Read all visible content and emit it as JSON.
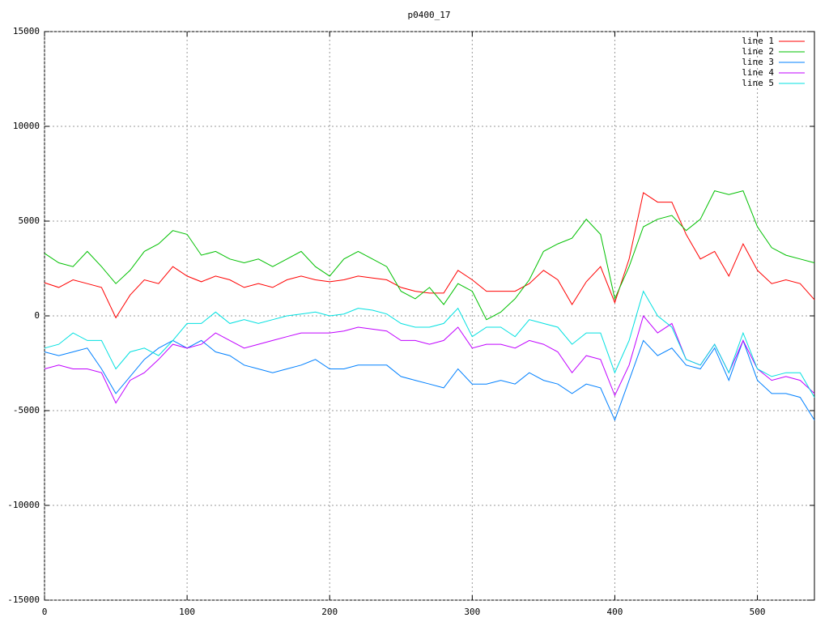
{
  "chart_data": {
    "type": "line",
    "title": "p0400_17",
    "x": [
      0,
      10,
      20,
      30,
      40,
      50,
      60,
      70,
      80,
      90,
      100,
      110,
      120,
      130,
      140,
      150,
      160,
      170,
      180,
      190,
      200,
      210,
      220,
      230,
      240,
      250,
      260,
      270,
      280,
      290,
      300,
      310,
      320,
      330,
      340,
      350,
      360,
      370,
      380,
      390,
      400,
      410,
      420,
      430,
      440,
      450,
      460,
      470,
      480,
      490,
      500,
      510,
      520,
      530,
      540
    ],
    "series": [
      {
        "name": "line 1",
        "color": "#ff0000",
        "values": [
          1750,
          1500,
          1900,
          1700,
          1500,
          -100,
          1100,
          1900,
          1700,
          2600,
          2100,
          1800,
          2100,
          1900,
          1500,
          1700,
          1500,
          1900,
          2100,
          1900,
          1800,
          1900,
          2100,
          2000,
          1900,
          1500,
          1300,
          1200,
          1200,
          2400,
          1900,
          1300,
          1300,
          1300,
          1700,
          2400,
          1900,
          600,
          1800,
          2600,
          700,
          3000,
          6500,
          6000,
          6000,
          4300,
          3000,
          3400,
          2100,
          3800,
          2400,
          1700,
          1900,
          1700,
          850
        ]
      },
      {
        "name": "line 2",
        "color": "#00c000",
        "values": [
          3300,
          2800,
          2600,
          3400,
          2600,
          1700,
          2400,
          3400,
          3800,
          4500,
          4300,
          3200,
          3400,
          3000,
          2800,
          3000,
          2600,
          3000,
          3400,
          2600,
          2100,
          3000,
          3400,
          3000,
          2600,
          1300,
          900,
          1500,
          600,
          1700,
          1300,
          -200,
          200,
          900,
          1900,
          3400,
          3800,
          4100,
          5100,
          4300,
          900,
          2600,
          4700,
          5100,
          5300,
          4500,
          5100,
          6600,
          6400,
          6600,
          4700,
          3600,
          3200,
          3000,
          2800
        ]
      },
      {
        "name": "line 3",
        "color": "#0080ff",
        "values": [
          -1900,
          -2100,
          -1900,
          -1700,
          -2800,
          -4100,
          -3200,
          -2300,
          -1700,
          -1300,
          -1700,
          -1300,
          -1900,
          -2100,
          -2600,
          -2800,
          -3000,
          -2800,
          -2600,
          -2300,
          -2800,
          -2800,
          -2600,
          -2600,
          -2600,
          -3200,
          -3400,
          -3600,
          -3800,
          -2800,
          -3600,
          -3600,
          -3400,
          -3600,
          -3000,
          -3400,
          -3600,
          -4100,
          -3600,
          -3800,
          -5500,
          -3400,
          -1300,
          -2100,
          -1700,
          -2600,
          -2800,
          -1700,
          -3400,
          -1300,
          -3400,
          -4100,
          -4100,
          -4300,
          -5500
        ]
      },
      {
        "name": "line 4",
        "color": "#c000ff",
        "values": [
          -2800,
          -2600,
          -2800,
          -2800,
          -3000,
          -4600,
          -3400,
          -3000,
          -2300,
          -1500,
          -1700,
          -1500,
          -900,
          -1300,
          -1700,
          -1500,
          -1300,
          -1100,
          -900,
          -900,
          -900,
          -800,
          -600,
          -700,
          -800,
          -1300,
          -1300,
          -1500,
          -1300,
          -600,
          -1700,
          -1500,
          -1500,
          -1700,
          -1300,
          -1500,
          -1900,
          -3000,
          -2100,
          -2300,
          -4200,
          -2600,
          0,
          -900,
          -400,
          -2300,
          -2600,
          -1500,
          -3000,
          -1300,
          -2800,
          -3400,
          -3200,
          -3400,
          -4100
        ]
      },
      {
        "name": "line 5",
        "color": "#00e0e0",
        "values": [
          -1700,
          -1500,
          -900,
          -1300,
          -1300,
          -2800,
          -1900,
          -1700,
          -2100,
          -1300,
          -400,
          -400,
          200,
          -400,
          -200,
          -400,
          -200,
          0,
          100,
          200,
          0,
          100,
          400,
          300,
          100,
          -400,
          -600,
          -600,
          -400,
          400,
          -1100,
          -600,
          -600,
          -1100,
          -200,
          -400,
          -600,
          -1500,
          -900,
          -900,
          -3000,
          -1300,
          1300,
          0,
          -600,
          -2300,
          -2600,
          -1500,
          -3000,
          -900,
          -2800,
          -3200,
          -3000,
          -3000,
          -4300
        ]
      }
    ],
    "xlim": [
      0,
      540
    ],
    "ylim": [
      -15000,
      15000
    ],
    "xticks": [
      0,
      100,
      200,
      300,
      400,
      500
    ],
    "yticks": [
      -15000,
      -10000,
      -5000,
      0,
      5000,
      10000,
      15000
    ],
    "grid": true,
    "legend": "top-right"
  }
}
